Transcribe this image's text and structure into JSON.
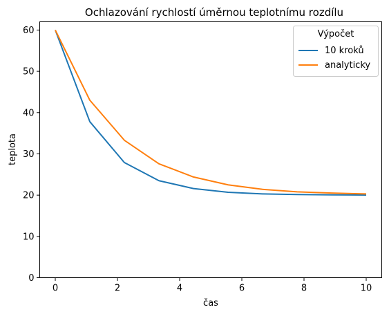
{
  "chart_data": {
    "type": "line",
    "title": "Ochlazování rychlostí úměrnou teplotnímu rozdílu",
    "xlabel": "čas",
    "ylabel": "teplota",
    "xlim": [
      -0.5,
      10.5
    ],
    "ylim": [
      0,
      62
    ],
    "xticks": [
      0,
      2,
      4,
      6,
      8,
      10
    ],
    "yticks": [
      0,
      10,
      20,
      30,
      40,
      50,
      60
    ],
    "grid": false,
    "legend": {
      "title": "Výpočet",
      "placement": "top-right"
    },
    "series": [
      {
        "name": "10 kroků",
        "color": "#1f77b4",
        "x": [
          0,
          1.111,
          2.222,
          3.333,
          4.444,
          5.556,
          6.667,
          7.778,
          8.889,
          10
        ],
        "y": [
          60,
          37.8,
          27.9,
          23.5,
          21.6,
          20.7,
          20.3,
          20.15,
          20.07,
          20.03
        ]
      },
      {
        "name": "analyticky",
        "color": "#ff7f0e",
        "x": [
          0,
          1.111,
          2.222,
          3.333,
          4.444,
          5.556,
          6.667,
          7.778,
          8.889,
          10
        ],
        "y": [
          60,
          43.0,
          33.3,
          27.6,
          24.4,
          22.5,
          21.4,
          20.8,
          20.5,
          20.3
        ]
      }
    ]
  }
}
